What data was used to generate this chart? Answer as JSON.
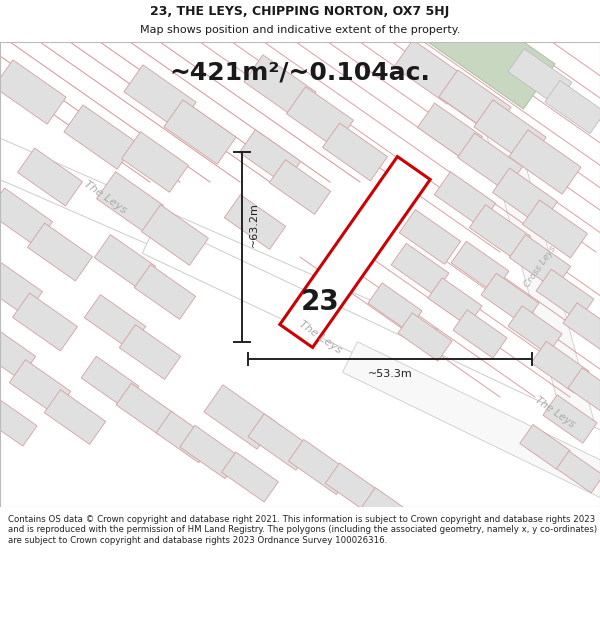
{
  "title_line1": "23, THE LEYS, CHIPPING NORTON, OX7 5HJ",
  "title_line2": "Map shows position and indicative extent of the property.",
  "area_text": "~421m²/~0.104ac.",
  "label_height": "~63.2m",
  "label_width": "~53.3m",
  "number_label": "23",
  "road_label_nw": "The Leys",
  "road_label_mid": "The Leys",
  "road_label_se": "The Leys",
  "road_label_cross": "Cross Leys",
  "footer_text": "Contains OS data © Crown copyright and database right 2021. This information is subject to Crown copyright and database rights 2023 and is reproduced with the permission of HM Land Registry. The polygons (including the associated geometry, namely x, y co-ordinates) are subject to Crown copyright and database rights 2023 Ordnance Survey 100026316.",
  "map_bg": "#f2f2f2",
  "building_fill": "#e0e0e0",
  "building_outline_pink": "#d4a0a0",
  "building_outline_gray": "#b8b8b8",
  "plot_fill": "#ffffff",
  "plot_outline": "#cc0000",
  "dimension_color": "#222222",
  "text_color": "#1a1a1a",
  "road_text_color": "#aaaaaa",
  "green_fill": "#c8d8c0",
  "green_outline": "#a8c0a0"
}
